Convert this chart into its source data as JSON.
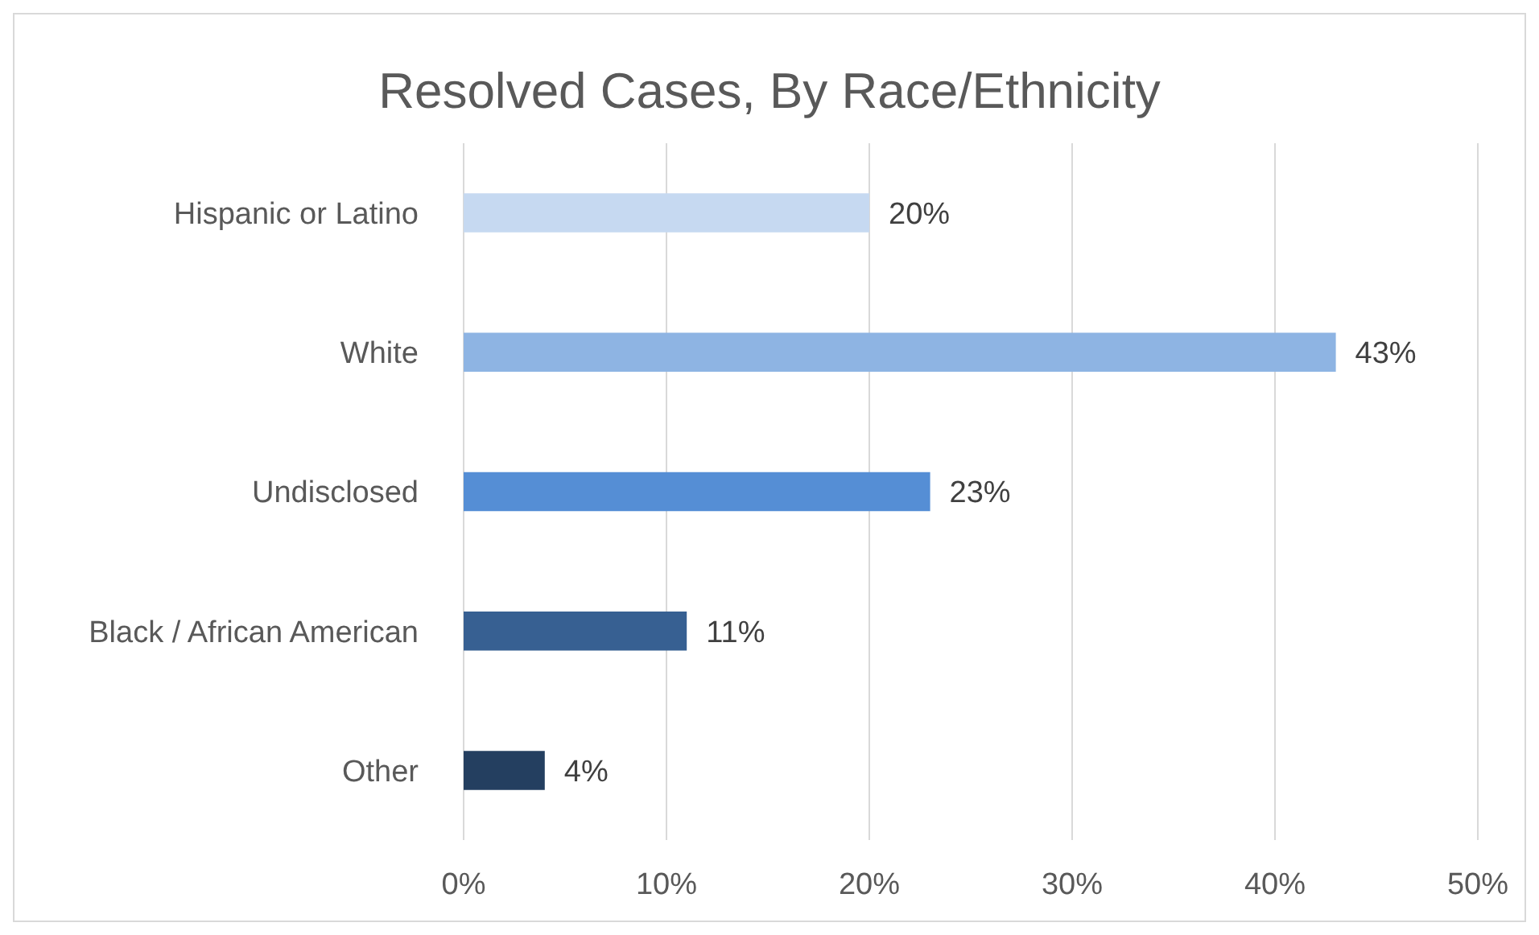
{
  "chart_data": {
    "type": "bar",
    "orientation": "horizontal",
    "title": "Resolved Cases, By Race/Ethnicity",
    "categories": [
      "Hispanic or Latino",
      "White",
      "Undisclosed",
      "Black / African American",
      "Other"
    ],
    "values": [
      20,
      43,
      23,
      11,
      4
    ],
    "colors": [
      "#c6d9f1",
      "#8eb4e3",
      "#558ed5",
      "#376092",
      "#243f60"
    ],
    "value_labels": [
      "20%",
      "43%",
      "23%",
      "11%",
      "4%"
    ],
    "xlim": [
      0,
      50
    ],
    "xticks": [
      {
        "value": 0,
        "label": "0%"
      },
      {
        "value": 10,
        "label": "10%"
      },
      {
        "value": 20,
        "label": "20%"
      },
      {
        "value": 30,
        "label": "30%"
      },
      {
        "value": 40,
        "label": "40%"
      },
      {
        "value": 50,
        "label": "50%"
      }
    ],
    "grid": "x"
  }
}
